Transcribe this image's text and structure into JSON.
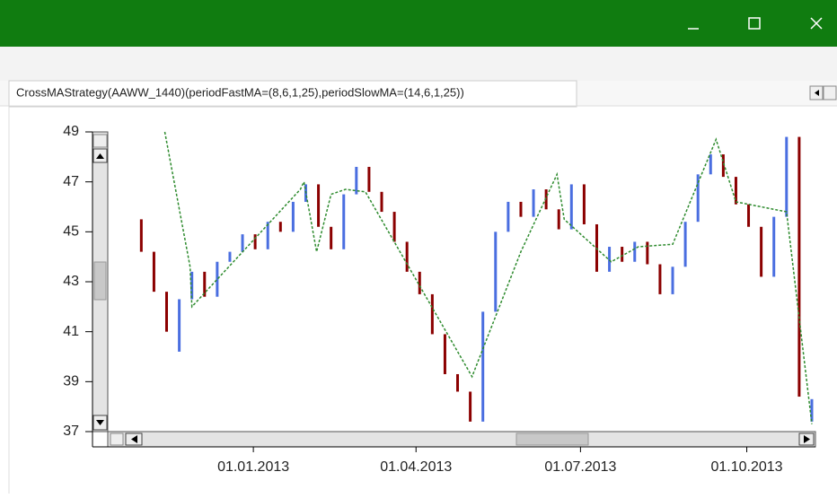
{
  "tab": {
    "label": "CrossMAStrategy(AAWW_1440)(periodFastMA=(8,6,1,25),periodSlowMA=(14,6,1,25))"
  },
  "chart_data": {
    "type": "candlestick",
    "x": [
      "2012-10-31",
      "2012-11-07",
      "2012-11-14",
      "2012-11-21",
      "2012-11-28",
      "2012-12-05",
      "2012-12-12",
      "2012-12-19",
      "2012-12-26",
      "2013-01-02",
      "2013-01-09",
      "2013-01-16",
      "2013-01-23",
      "2013-01-30",
      "2013-02-06",
      "2013-02-13",
      "2013-02-20",
      "2013-02-27",
      "2013-03-06",
      "2013-03-13",
      "2013-03-20",
      "2013-03-27",
      "2013-04-03",
      "2013-04-10",
      "2013-04-17",
      "2013-04-24",
      "2013-05-01",
      "2013-05-08",
      "2013-05-15",
      "2013-05-22",
      "2013-05-29",
      "2013-06-05",
      "2013-06-12",
      "2013-06-19",
      "2013-06-26",
      "2013-07-03",
      "2013-07-10",
      "2013-07-17",
      "2013-07-24",
      "2013-07-31",
      "2013-08-07",
      "2013-08-14",
      "2013-08-21",
      "2013-08-28",
      "2013-09-04",
      "2013-09-11",
      "2013-09-18",
      "2013-09-25",
      "2013-10-02",
      "2013-10-09",
      "2013-10-16",
      "2013-10-23",
      "2013-10-30",
      "2013-11-06"
    ],
    "open": [
      45.5,
      44.2,
      42.6,
      40.2,
      42.3,
      43.4,
      42.4,
      43.8,
      44.2,
      44.9,
      44.3,
      45.4,
      45.0,
      46.2,
      46.9,
      45.2,
      44.3,
      46.5,
      47.6,
      46.6,
      45.8,
      44.6,
      43.4,
      42.5,
      40.9,
      39.3,
      38.6,
      37.4,
      41.8,
      45.0,
      46.2,
      45.6,
      46.7,
      45.9,
      45.1,
      46.9,
      45.3,
      43.4,
      44.4,
      43.8,
      44.6,
      43.7,
      42.5,
      43.6,
      45.4,
      47.3,
      48.1,
      47.2,
      46.1,
      45.2,
      43.2,
      45.6,
      48.8,
      37.4
    ],
    "close": [
      44.2,
      42.6,
      41.0,
      42.3,
      43.4,
      42.4,
      43.8,
      44.2,
      44.9,
      44.3,
      45.4,
      45.0,
      46.2,
      46.9,
      45.2,
      44.3,
      46.5,
      47.6,
      46.6,
      45.8,
      44.6,
      43.4,
      42.5,
      40.9,
      39.3,
      38.6,
      37.4,
      41.8,
      45.0,
      46.2,
      45.6,
      46.7,
      45.9,
      45.1,
      46.9,
      45.3,
      43.4,
      44.4,
      43.8,
      44.6,
      43.7,
      42.5,
      43.6,
      45.4,
      47.3,
      48.1,
      47.2,
      46.1,
      45.2,
      43.2,
      45.6,
      48.8,
      38.4,
      38.3
    ],
    "up_color": "#4a6ee0",
    "down_color": "#8b0000",
    "line": {
      "x": [
        "2012-11-13",
        "2012-11-27",
        "2012-11-28",
        "2013-01-27",
        "2013-01-29",
        "2013-02-05",
        "2013-02-13",
        "2013-02-21",
        "2013-03-04",
        "2013-05-02",
        "2013-05-29",
        "2013-06-18",
        "2013-06-22",
        "2013-07-18",
        "2013-08-02",
        "2013-08-21",
        "2013-09-14",
        "2013-09-25",
        "2013-10-23",
        "2013-11-06"
      ],
      "values": [
        49.0,
        43.6,
        42.0,
        46.7,
        47.0,
        44.2,
        46.5,
        46.7,
        46.6,
        39.2,
        44.2,
        47.3,
        45.5,
        43.8,
        44.4,
        44.5,
        48.7,
        46.2,
        45.8,
        37.3
      ],
      "color": "#2e8b2e",
      "dashed": true
    },
    "xlim": [
      "2012-10-04",
      "2013-11-08"
    ],
    "xticks": [
      {
        "value": "2013-01-01",
        "label": "01.01.2013"
      },
      {
        "value": "2013-04-01",
        "label": "01.04.2013"
      },
      {
        "value": "2013-07-01",
        "label": "01.07.2013"
      },
      {
        "value": "2013-10-01",
        "label": "01.10.2013"
      }
    ],
    "ylim": [
      37,
      49
    ],
    "yticks": [
      37,
      39,
      41,
      43,
      45,
      47,
      49
    ],
    "grid": false
  }
}
